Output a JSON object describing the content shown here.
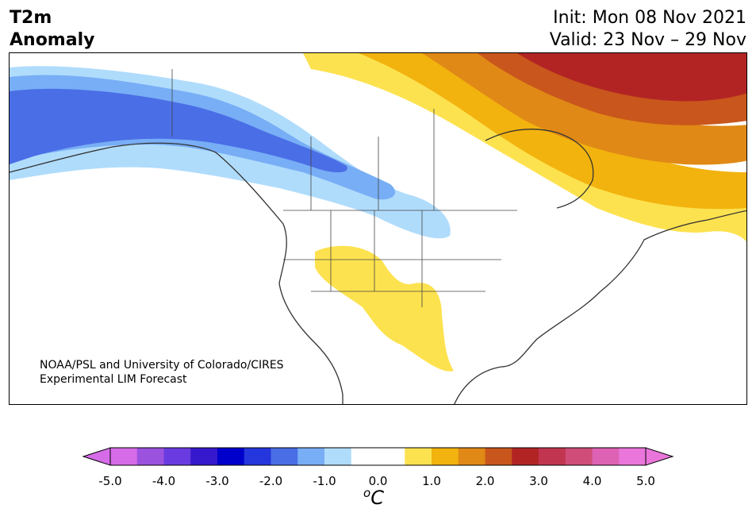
{
  "header": {
    "title_line1": "T2m",
    "title_line2": "Anomaly",
    "init_text": "Init: Mon 08 Nov 2021",
    "valid_text": "Valid: 23 Nov – 29 Nov"
  },
  "map": {
    "credit_line1": "NOAA/PSL and University of Colorado/CIRES",
    "credit_line2": "Experimental LIM Forecast",
    "region": "North America",
    "variable": "2-m temperature anomaly"
  },
  "colorbar": {
    "unit_base": "C",
    "unit_sup": "o",
    "ticks": [
      "-5.0",
      "-4.0",
      "-3.0",
      "-2.0",
      "-1.0",
      "0.0",
      "1.0",
      "2.0",
      "3.0",
      "4.0",
      "5.0"
    ],
    "colors": [
      "#d66ce8",
      "#9b52de",
      "#6a3be0",
      "#3618cc",
      "#0000cd",
      "#2436dc",
      "#4a6ee6",
      "#78aef5",
      "#b0dcfc",
      "#ffffff",
      "#ffffff",
      "#fde24f",
      "#f2b30e",
      "#e08916",
      "#c9561c",
      "#b22424",
      "#c23550",
      "#cf4d78",
      "#dd62b4",
      "#ea75db"
    ],
    "low_extend_color": "#d66ce8",
    "high_extend_color": "#ea75db"
  }
}
